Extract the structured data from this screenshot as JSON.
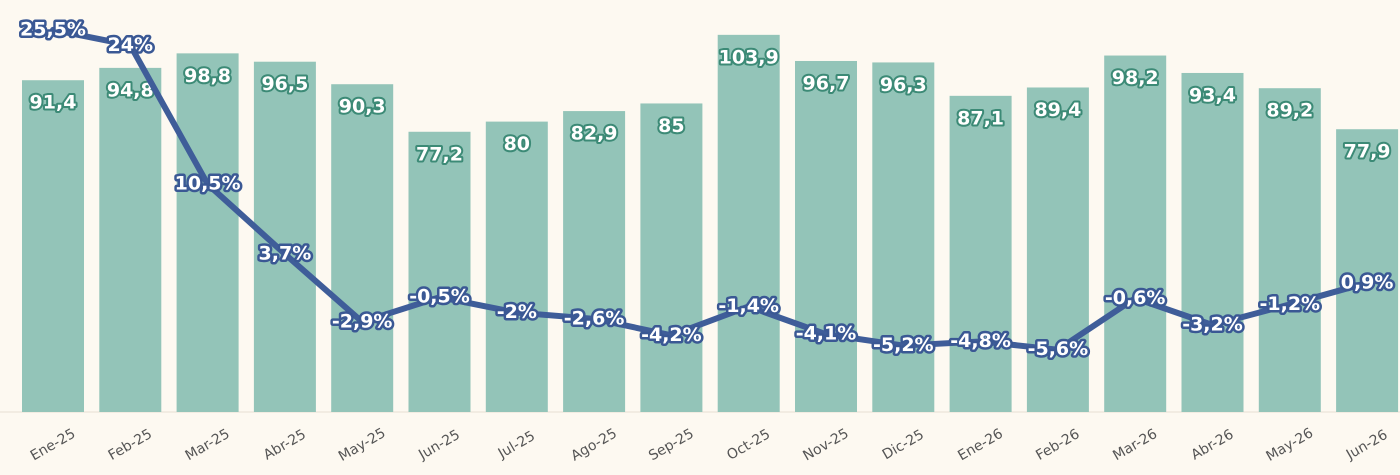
{
  "chart_data": {
    "type": "bar",
    "categories": [
      "Ene-25",
      "Feb-25",
      "Mar-25",
      "Abr-25",
      "May-25",
      "Jun-25",
      "Jul-25",
      "Ago-25",
      "Sep-25",
      "Oct-25",
      "Nov-25",
      "Dic-25",
      "Ene-26",
      "Feb-26",
      "Mar-26",
      "Abr-26",
      "May-26",
      "Jun-26"
    ],
    "ylim": [
      0,
      113.5
    ],
    "y2lim": [
      -11.66,
      28.4
    ],
    "series": [
      {
        "type": "bar",
        "color": "#93c4b8",
        "values": [
          91.4,
          94.8,
          98.8,
          96.5,
          90.3,
          77.2,
          80,
          82.9,
          85,
          103.9,
          96.7,
          96.3,
          87.1,
          89.4,
          98.2,
          93.4,
          89.2,
          77.9
        ],
        "value_labels": [
          "91,4",
          "94,8",
          "98,8",
          "96,5",
          "90,3",
          "77,2",
          "80",
          "82,9",
          "85",
          "103,9",
          "96,7",
          "96,3",
          "87,1",
          "89,4",
          "98,2",
          "93,4",
          "89,2",
          "77,9"
        ]
      },
      {
        "type": "line",
        "axis": "y2",
        "color": "#3f5d99",
        "values": [
          25.5,
          24,
          10.5,
          3.7,
          -2.9,
          -0.5,
          -2,
          -2.6,
          -4.2,
          -1.4,
          -4.1,
          -5.2,
          -4.8,
          -5.6,
          -0.6,
          -3.2,
          -1.2,
          0.9
        ],
        "value_labels": [
          "25,5%",
          "24%",
          "10,5%",
          "3,7%",
          "-2,9%",
          "-0,5%",
          "-2%",
          "-2,6%",
          "-4,2%",
          "-1,4%",
          "-4,1%",
          "-5,2%",
          "-4,8%",
          "-5,6%",
          "-0,6%",
          "-3,2%",
          "-1,2%",
          "0,9%"
        ]
      }
    ]
  }
}
